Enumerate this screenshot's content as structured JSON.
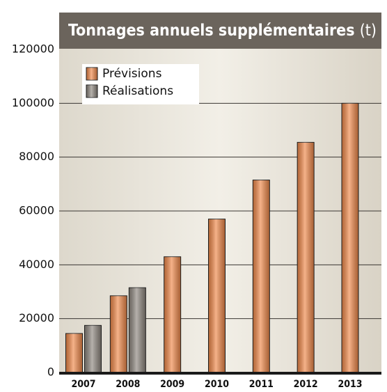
{
  "chart_data": {
    "type": "bar",
    "title": "Tonnages annuels supplémentaires",
    "unit": "(t)",
    "categories": [
      "2007",
      "2008",
      "2009",
      "2010",
      "2011",
      "2012",
      "2013"
    ],
    "series": [
      {
        "name": "Prévisions",
        "color": "#f0894a",
        "values": [
          14500,
          28500,
          43000,
          57000,
          71500,
          85500,
          100000
        ]
      },
      {
        "name": "Réalisations",
        "color": "#8e877f",
        "values": [
          17500,
          31500,
          null,
          null,
          null,
          null,
          null
        ]
      }
    ],
    "ylim": [
      0,
      120000
    ],
    "yticks": [
      0,
      20000,
      40000,
      60000,
      80000,
      100000,
      120000
    ],
    "grid": true,
    "legend": "top-left"
  }
}
